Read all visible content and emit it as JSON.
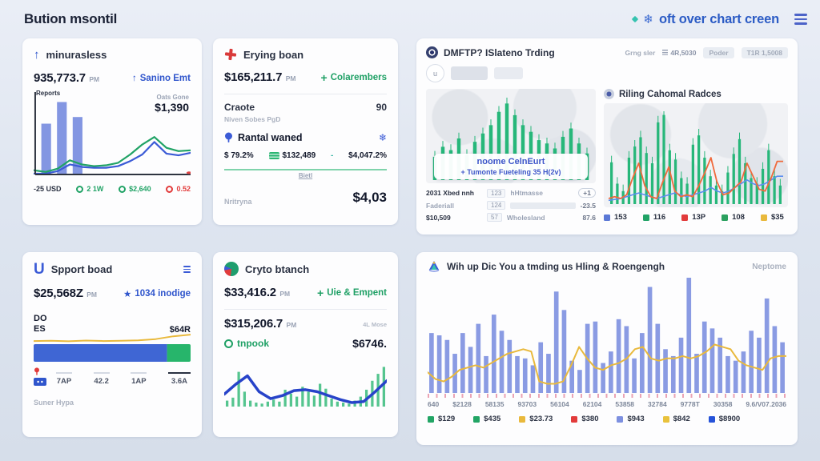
{
  "header": {
    "title": "Bution msontil",
    "brand": "oft over chart creen"
  },
  "icons": {
    "up_arrow": "↑",
    "star": "★",
    "snowflake": "❄",
    "plus": "+",
    "minus": "-"
  },
  "card_a": {
    "title": "minurasless",
    "value": "935,773.7",
    "unit": "PM",
    "badge": "Sanino Emt",
    "chart_label": "Reports",
    "note_small": "Oats Gone",
    "note_value": "$1,390",
    "stats": [
      {
        "label": "-25 USD",
        "color": "#2a3142"
      },
      {
        "label": "2 1W",
        "color": "#21a366"
      },
      {
        "label": "$2,640",
        "color": "#21a366"
      },
      {
        "label": "0.52",
        "color": "#e23b3b"
      }
    ]
  },
  "card_b": {
    "title": "Erying boan",
    "value": "$165,211.7",
    "unit": "PM",
    "badge": "Colarembers",
    "row1_label": "Craote",
    "row1_sub": "Niven Sobes PgD",
    "row1_value": "90",
    "row2_label": "Rantal waned",
    "row3": [
      "$ 79.2%",
      "$132,489",
      "-",
      "$4,047.2%"
    ],
    "divider_label": "Bietl",
    "footer_label": "Nritryna",
    "footer_value": "$4,03"
  },
  "card_c": {
    "title": "DMFTP? ISlateno Trding",
    "meta_label": "Grng sler",
    "meta_value": "4R,5030",
    "chip1": "Poder",
    "chip2": "T1R 1,5008",
    "avatar": "u",
    "tooltip_line1": "noome CelnEurt",
    "tooltip_line2": "+ Tumonte Fueteling 35 H(2v)",
    "table": [
      {
        "name": "2031 Xbed nnh",
        "mid": "123",
        "tag": "hHtmasse",
        "val": "+1"
      },
      {
        "name": "Faderiall",
        "mid": "124",
        "tag": "",
        "val": "-23.5"
      },
      {
        "name": "$10,509",
        "mid": "57",
        "tag": "Wholesland",
        "val": "87.6"
      }
    ],
    "right_title": "Riling Cahomal Radces",
    "legend": [
      {
        "label": "153",
        "color": "#5b78d6"
      },
      {
        "label": "116",
        "color": "#21a366"
      },
      {
        "label": "13P",
        "color": "#e23b3b"
      },
      {
        "label": "108",
        "color": "#2ba05f"
      },
      {
        "label": "$35",
        "color": "#e9b93c"
      }
    ]
  },
  "card_d": {
    "logo": "U",
    "title": "Spport boad",
    "value": "$25,568Z",
    "unit": "PM",
    "badge": "1034 inodige",
    "label_line1": "DO",
    "label_line2": "ES",
    "right_value": "$64R",
    "ticks": [
      "7AP",
      "42.2",
      "1AP",
      "3.6A"
    ],
    "footer": "Suner Hypa"
  },
  "card_e": {
    "title": "Cryto btanch",
    "value": "$33,416.2",
    "unit": "PM",
    "badge": "Uie & Empent",
    "value2": "$315,206.7",
    "unit2": "PM",
    "note": "4L Mose",
    "row_label": "tnpook",
    "row_value": "$6746."
  },
  "card_f": {
    "title": "Wih up Dic You a tmding us Hling & Roengengh",
    "right_label": "Neptome",
    "x_labels": [
      "640",
      "$2128",
      "58135",
      "93703",
      "56104",
      "62104",
      "53858",
      "32784",
      "9778T",
      "30358",
      "9.6/V07.2036"
    ],
    "legend": [
      {
        "label": "$129",
        "color": "#22a565"
      },
      {
        "label": "$435",
        "color": "#22a565"
      },
      {
        "label": "$23.73",
        "color": "#e9b93c"
      },
      {
        "label": "$380",
        "color": "#e23b3b"
      },
      {
        "label": "$943",
        "color": "#7d90e0"
      },
      {
        "label": "$842",
        "color": "#e9c23c"
      },
      {
        "label": "$8900",
        "color": "#2653d9"
      }
    ]
  },
  "charts": {
    "a": {
      "axis": true,
      "end_dot": "#e04545",
      "bars": [
        {
          "values": [
            62,
            88,
            70
          ],
          "color": "#6d84dd",
          "span": 0.3,
          "offset": 0.03,
          "ratio": 0.62,
          "opacity": 0.85
        }
      ],
      "lines": [
        {
          "values": [
            2,
            2,
            5,
            13,
            10,
            9,
            9,
            11,
            17,
            25,
            40,
            26,
            24,
            27
          ],
          "color": "#3b5bd6",
          "width": 2.2
        },
        {
          "values": [
            6,
            4,
            8,
            18,
            13,
            11,
            12,
            15,
            25,
            37,
            46,
            33,
            29,
            30
          ],
          "color": "#21a366",
          "width": 2.2
        }
      ]
    },
    "c_left": {
      "candles": [
        {
          "values": [
            28,
            40,
            36,
            50,
            30,
            46,
            56,
            66,
            82,
            92,
            78,
            66,
            58,
            48,
            44,
            38,
            52,
            62,
            44,
            32
          ],
          "color": "#27b77a"
        }
      ]
    },
    "c_right": {
      "candles": [
        {
          "values": [
            45,
            22,
            14,
            50,
            62,
            72,
            55,
            44,
            88,
            96,
            58,
            48,
            28,
            22,
            64,
            74,
            50,
            30,
            20,
            14,
            34,
            54,
            70,
            44,
            28,
            22,
            38,
            58,
            30,
            20
          ],
          "color": "#27b77a"
        }
      ],
      "lines": [
        {
          "values": [
            4,
            5,
            6,
            8,
            10,
            12,
            10,
            8,
            6,
            8,
            10,
            12,
            10,
            8,
            10,
            12,
            14,
            18,
            14,
            12,
            14,
            18,
            22,
            26,
            22,
            20,
            22,
            26,
            30,
            30
          ],
          "color": "#5b8df0",
          "width": 1.6
        },
        {
          "values": [
            6,
            8,
            6,
            10,
            28,
            44,
            20,
            8,
            6,
            24,
            40,
            14,
            8,
            10,
            8,
            20,
            34,
            50,
            24,
            10,
            12,
            18,
            24,
            44,
            30,
            16,
            14,
            28,
            46,
            46
          ],
          "color": "#f06a3c",
          "width": 1.8
        }
      ]
    },
    "d_bar": {
      "stack": [
        {
          "pct": 85,
          "color": "#3f66d4"
        },
        {
          "pct": 15,
          "color": "#27b56b"
        }
      ]
    },
    "d_line": {
      "lines": [
        {
          "values": [
            28,
            30,
            26,
            32,
            28,
            30,
            34,
            45,
            70,
            85
          ],
          "color": "#e9b93c",
          "width": 2
        }
      ]
    },
    "e": {
      "bars": [
        {
          "values": [
            12,
            18,
            70,
            30,
            12,
            8,
            6,
            10,
            14,
            10,
            34,
            26,
            20,
            40,
            30,
            22,
            46,
            36,
            16,
            10,
            8,
            6,
            12,
            20,
            34,
            52,
            66,
            80
          ],
          "color": "#2bb673",
          "ratio": 0.45,
          "opacity": 0.8
        }
      ],
      "lines": [
        {
          "values": [
            25,
            45,
            62,
            30,
            16,
            22,
            32,
            34,
            30,
            22,
            14,
            8,
            10,
            30,
            52
          ],
          "color": "#2743c9",
          "width": 3.5
        }
      ]
    },
    "f": {
      "bars": [
        {
          "values": [
            52,
            50,
            46,
            34,
            52,
            40,
            60,
            32,
            68,
            54,
            46,
            32,
            30,
            24,
            44,
            34,
            88,
            72,
            28,
            20,
            60,
            62,
            26,
            36,
            64,
            58,
            30,
            52,
            92,
            60,
            38,
            32,
            48,
            100,
            34,
            62,
            56,
            48,
            32,
            28,
            36,
            54,
            48,
            82,
            58,
            44
          ],
          "color": "#7d90e0",
          "ratio": 0.58,
          "opacity": 0.9
        }
      ],
      "lines": [
        {
          "values": [
            18,
            12,
            10,
            14,
            20,
            22,
            24,
            22,
            26,
            30,
            34,
            36,
            38,
            36,
            10,
            8,
            8,
            10,
            24,
            40,
            30,
            22,
            20,
            24,
            26,
            30,
            38,
            40,
            30,
            28,
            30,
            30,
            32,
            30,
            32,
            36,
            42,
            40,
            38,
            28,
            24,
            22,
            20,
            30,
            32,
            32
          ],
          "color": "#e9b93c",
          "width": 2
        }
      ]
    }
  }
}
